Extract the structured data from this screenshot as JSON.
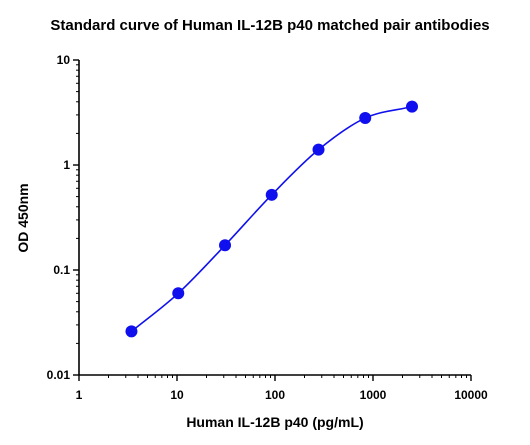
{
  "chart_data": {
    "type": "scatter",
    "title": "Standard curve of Human IL-12B p40 matched pair antibodies",
    "xlabel": "Human IL-12B p40 (pg/mL)",
    "ylabel": "OD 450nm",
    "xscale": "log",
    "yscale": "log",
    "xlim": [
      1,
      10000
    ],
    "ylim": [
      0.01,
      10
    ],
    "x_ticks": [
      1,
      10,
      100,
      1000,
      10000
    ],
    "x_tick_labels": [
      "1",
      "10",
      "100",
      "1000",
      "10000"
    ],
    "y_ticks": [
      0.01,
      0.1,
      1,
      10
    ],
    "y_tick_labels": [
      "0.01",
      "0.1",
      "1",
      "10"
    ],
    "grid": false,
    "colors": {
      "series": "#1010ee",
      "axes": "#000000"
    },
    "series": [
      {
        "x": [
          3.43,
          10.3,
          30.9,
          92.6,
          278,
          833,
          2500
        ],
        "y": [
          0.026,
          0.06,
          0.172,
          0.52,
          1.4,
          2.8,
          3.6
        ],
        "marker": "circle",
        "fit": "sigmoidal-4pl"
      }
    ]
  }
}
